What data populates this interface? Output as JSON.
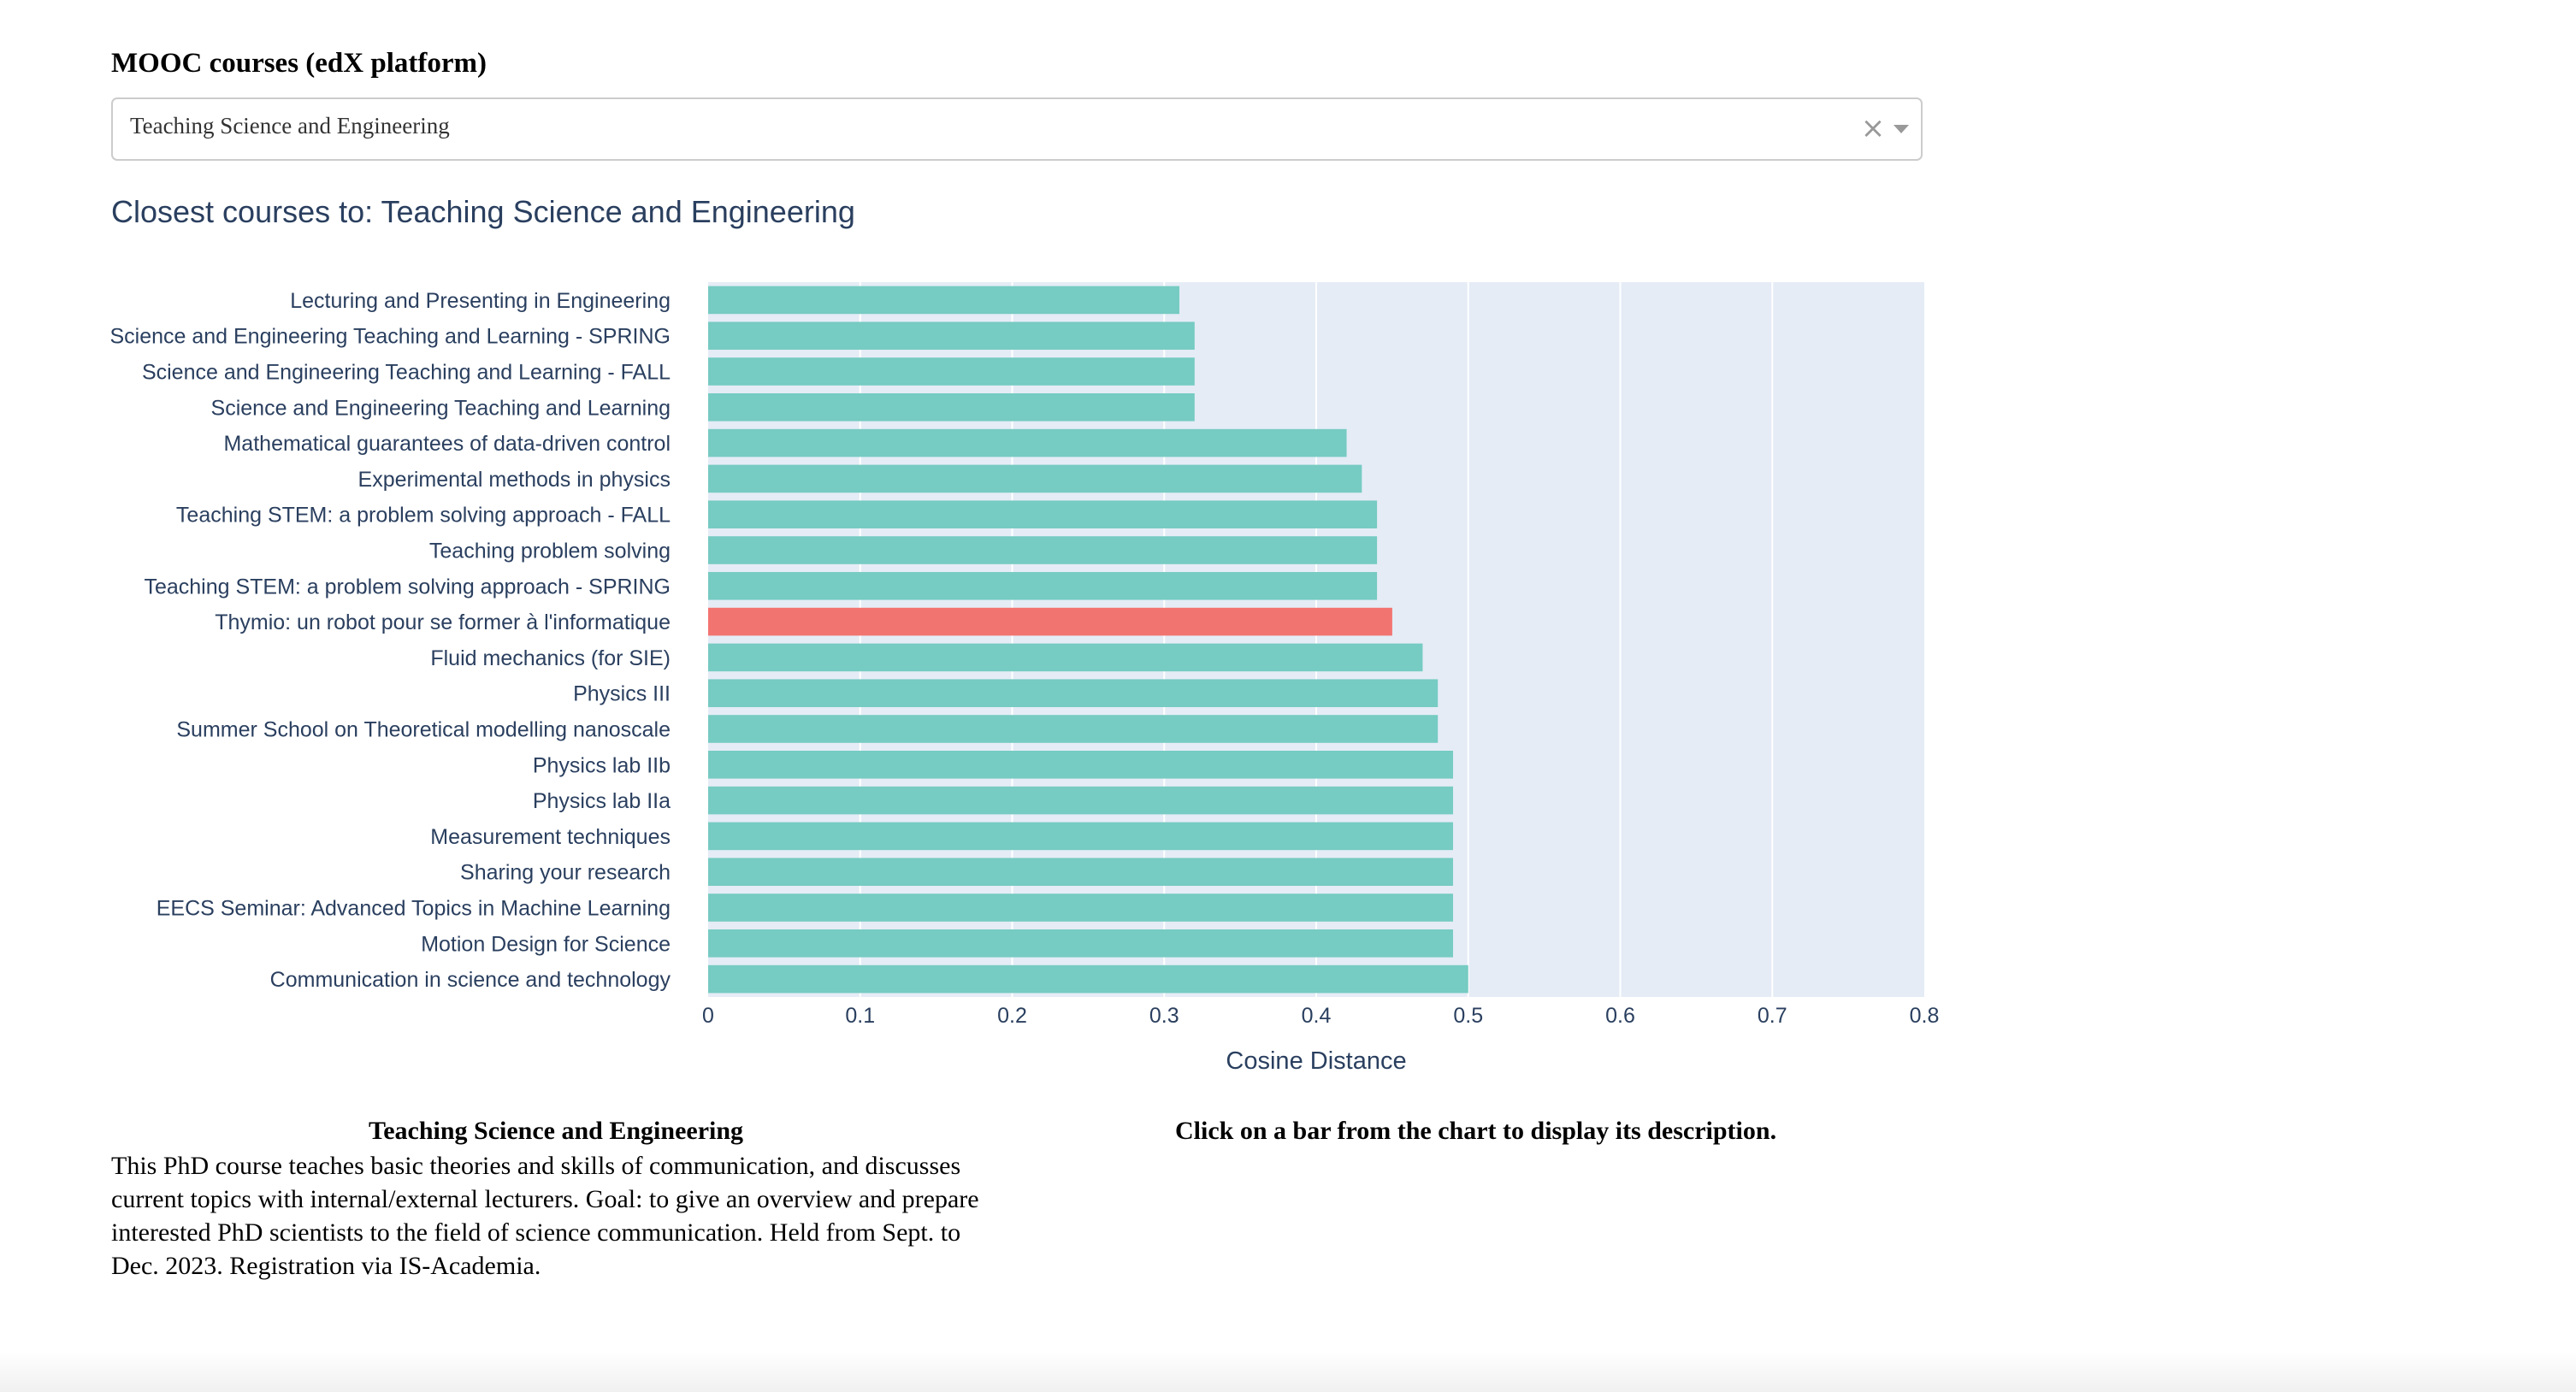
{
  "header": {
    "title": "MOOC courses (edX platform)"
  },
  "dropdown": {
    "selected": "Teaching Science and Engineering"
  },
  "chart_title": "Closest courses to: Teaching Science and Engineering",
  "chart_data": {
    "type": "bar",
    "orientation": "horizontal",
    "xlabel": "Cosine Distance",
    "ylabel": "",
    "xlim": [
      0,
      0.8
    ],
    "xticks": [
      "0",
      "0.1",
      "0.2",
      "0.3",
      "0.4",
      "0.5",
      "0.6",
      "0.7",
      "0.8"
    ],
    "grid": true,
    "colors": {
      "default": "#76cbc2",
      "highlight": "#f27471",
      "plot_bg": "#e5ecf6"
    },
    "categories": [
      "Lecturing and Presenting in Engineering",
      "Science and Engineering Teaching and Learning - SPRING",
      "Science and Engineering Teaching and Learning - FALL",
      "Science and Engineering Teaching and Learning",
      "Mathematical guarantees of data-driven control",
      "Experimental methods in physics",
      "Teaching STEM: a problem solving approach - FALL",
      "Teaching problem solving",
      "Teaching STEM: a problem solving approach - SPRING",
      "Thymio: un robot pour se former à l'informatique",
      "Fluid mechanics (for SIE)",
      "Physics III",
      "Summer School on Theoretical modelling nanoscale",
      "Physics lab IIb",
      "Physics lab IIa",
      "Measurement techniques",
      "Sharing your research",
      "EECS Seminar: Advanced Topics in Machine Learning",
      "Motion Design for Science",
      "Communication in science and technology"
    ],
    "values": [
      0.31,
      0.32,
      0.32,
      0.32,
      0.42,
      0.43,
      0.44,
      0.44,
      0.44,
      0.45,
      0.47,
      0.48,
      0.48,
      0.49,
      0.49,
      0.49,
      0.49,
      0.49,
      0.49,
      0.5
    ],
    "highlight_index": 9
  },
  "description": {
    "title": "Teaching Science and Engineering",
    "text": "This PhD course teaches basic theories and skills of communication, and discusses current topics with internal/external lecturers. Goal: to give an overview and prepare interested PhD scientists to the field of science communication. Held from Sept. to Dec. 2023. Registration via IS-Academia."
  },
  "hint": {
    "text": "Click on a bar from the chart to display its description."
  }
}
